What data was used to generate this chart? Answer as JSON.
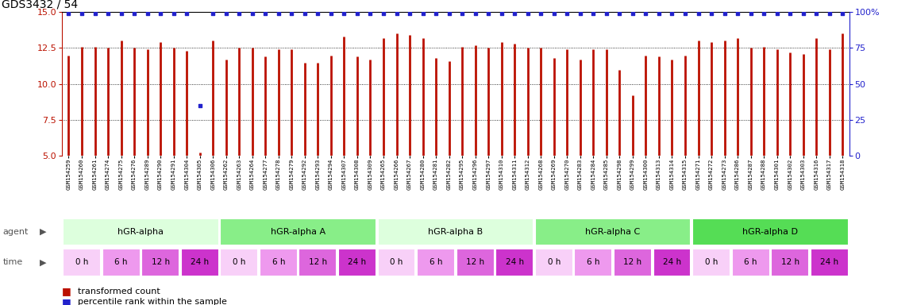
{
  "title": "GDS3432 / 54",
  "samples": [
    "GSM154259",
    "GSM154260",
    "GSM154261",
    "GSM154274",
    "GSM154275",
    "GSM154276",
    "GSM154289",
    "GSM154290",
    "GSM154291",
    "GSM154304",
    "GSM154305",
    "GSM154306",
    "GSM154262",
    "GSM154263",
    "GSM154264",
    "GSM154277",
    "GSM154278",
    "GSM154279",
    "GSM154292",
    "GSM154293",
    "GSM154294",
    "GSM154307",
    "GSM154308",
    "GSM154309",
    "GSM154265",
    "GSM154266",
    "GSM154267",
    "GSM154280",
    "GSM154281",
    "GSM154282",
    "GSM154295",
    "GSM154296",
    "GSM154297",
    "GSM154310",
    "GSM154311",
    "GSM154312",
    "GSM154268",
    "GSM154269",
    "GSM154270",
    "GSM154283",
    "GSM154284",
    "GSM154285",
    "GSM154298",
    "GSM154299",
    "GSM154300",
    "GSM154313",
    "GSM154314",
    "GSM154315",
    "GSM154271",
    "GSM154272",
    "GSM154273",
    "GSM154286",
    "GSM154287",
    "GSM154288",
    "GSM154301",
    "GSM154302",
    "GSM154303",
    "GSM154316",
    "GSM154317",
    "GSM154318"
  ],
  "red_values": [
    12.0,
    12.6,
    12.6,
    12.5,
    13.0,
    12.5,
    12.4,
    12.9,
    12.5,
    12.3,
    5.2,
    13.0,
    11.7,
    12.5,
    12.5,
    11.9,
    12.4,
    12.4,
    11.5,
    11.5,
    12.0,
    13.3,
    11.9,
    11.7,
    13.2,
    13.5,
    13.4,
    13.2,
    11.8,
    11.6,
    12.6,
    12.7,
    12.5,
    12.9,
    12.8,
    12.5,
    12.5,
    11.8,
    12.4,
    11.7,
    12.4,
    12.4,
    11.0,
    9.2,
    12.0,
    11.9,
    11.7,
    12.0,
    13.0,
    12.9,
    13.0,
    13.2,
    12.5,
    12.6,
    12.4,
    12.2,
    12.1,
    13.2,
    12.4,
    13.5
  ],
  "blue_values": [
    99,
    99,
    99,
    99,
    99,
    99,
    99,
    99,
    99,
    99,
    35,
    99,
    99,
    99,
    99,
    99,
    99,
    99,
    99,
    99,
    99,
    99,
    99,
    99,
    99,
    99,
    99,
    99,
    99,
    99,
    99,
    99,
    99,
    99,
    99,
    99,
    99,
    99,
    99,
    99,
    99,
    99,
    99,
    99,
    99,
    99,
    99,
    99,
    99,
    99,
    99,
    99,
    99,
    99,
    99,
    99,
    99,
    99,
    99,
    99
  ],
  "y_min": 5,
  "y_max": 15,
  "y_ticks": [
    5.0,
    7.5,
    10.0,
    12.5,
    15.0
  ],
  "y2_ticks": [
    0,
    25,
    50,
    75,
    100
  ],
  "bar_color": "#bb1100",
  "dot_color": "#2222cc",
  "bar_bottom": 5.0,
  "agents": [
    {
      "label": "hGR-alpha",
      "start": 0,
      "end": 12,
      "color": "#ddffdd"
    },
    {
      "label": "hGR-alpha A",
      "start": 12,
      "end": 24,
      "color": "#88ee88"
    },
    {
      "label": "hGR-alpha B",
      "start": 24,
      "end": 36,
      "color": "#ddffdd"
    },
    {
      "label": "hGR-alpha C",
      "start": 36,
      "end": 48,
      "color": "#88ee88"
    },
    {
      "label": "hGR-alpha D",
      "start": 48,
      "end": 60,
      "color": "#55dd55"
    }
  ],
  "times": [
    "0 h",
    "6 h",
    "12 h",
    "24 h"
  ],
  "time_colors": [
    "#f8d0f8",
    "#ee99ee",
    "#dd66dd",
    "#cc33cc"
  ],
  "legend_items": [
    {
      "color": "#bb1100",
      "label": "transformed count"
    },
    {
      "color": "#2222cc",
      "label": "percentile rank within the sample"
    }
  ],
  "background_color": "#ffffff"
}
